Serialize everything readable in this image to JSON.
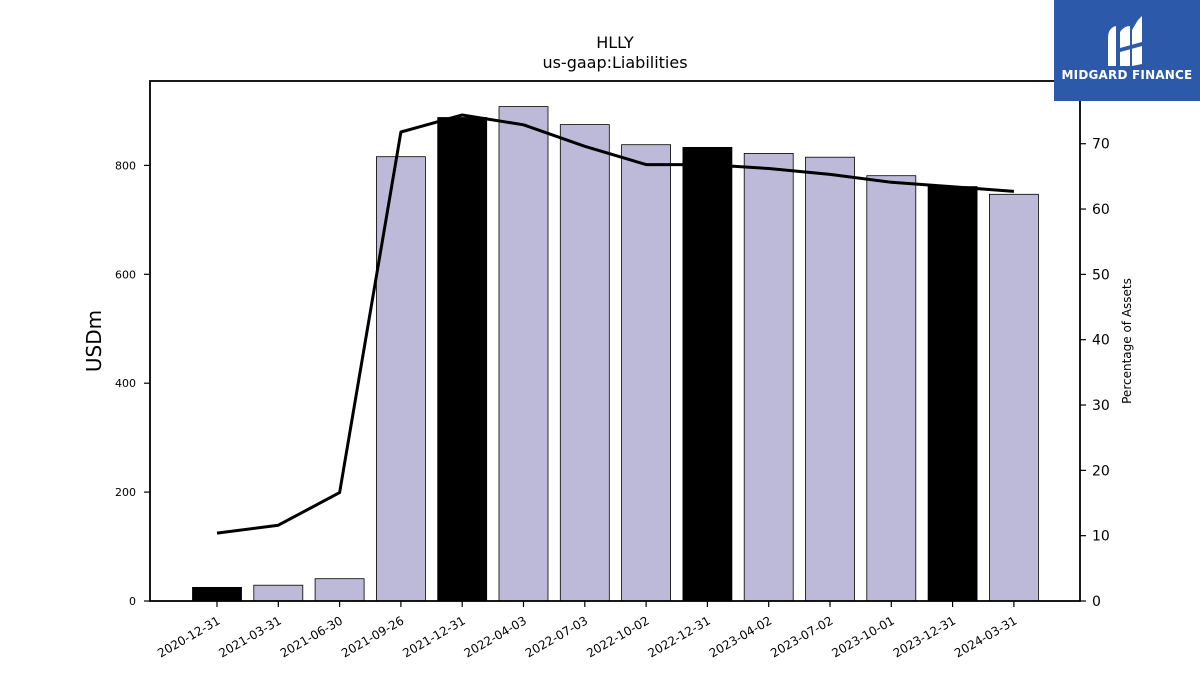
{
  "brand": {
    "name": "MIDGARD FINANCE",
    "bg_color": "#2c59aa"
  },
  "chart_data": {
    "type": "bar",
    "title": "HLLY",
    "subtitle": "us-gaap:Liabilities",
    "ylabel": "USDm",
    "y2label": "Percentage of Assets",
    "ylim": [
      0,
      955
    ],
    "y2lim": [
      0,
      79.6
    ],
    "yticks": [
      0,
      200,
      400,
      600,
      800
    ],
    "y2ticks": [
      0,
      10,
      20,
      30,
      40,
      50,
      60,
      70
    ],
    "categories": [
      "2020-12-31",
      "2021-03-31",
      "2021-06-30",
      "2021-09-26",
      "2021-12-31",
      "2022-04-03",
      "2022-07-03",
      "2022-10-02",
      "2022-12-31",
      "2023-04-02",
      "2023-07-02",
      "2023-10-01",
      "2023-12-31",
      "2024-03-31"
    ],
    "series": [
      {
        "type": "bar",
        "values": [
          25,
          29,
          41,
          816,
          888,
          908,
          875,
          838,
          833,
          822,
          815,
          781,
          761,
          747
        ],
        "colors": [
          "#000000",
          "#bdbad9",
          "#bdbad9",
          "#bdbad9",
          "#000000",
          "#bdbad9",
          "#bdbad9",
          "#bdbad9",
          "#000000",
          "#bdbad9",
          "#bdbad9",
          "#bdbad9",
          "#000000",
          "#bdbad9"
        ]
      },
      {
        "type": "line",
        "axis": "right",
        "values": [
          10.4,
          11.6,
          16.6,
          71.8,
          74.4,
          72.9,
          69.6,
          66.8,
          66.8,
          66.2,
          65.3,
          64.1,
          63.4,
          62.7
        ],
        "color": "#000000"
      }
    ]
  }
}
